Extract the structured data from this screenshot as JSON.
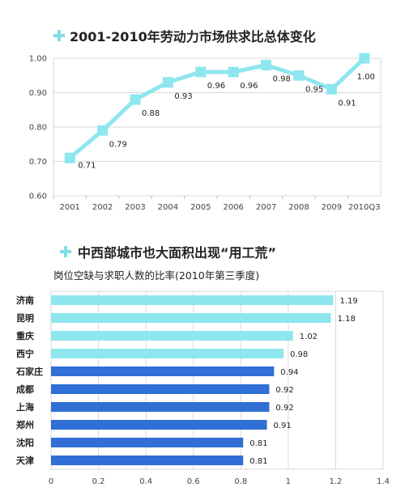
{
  "chart_data": [
    {
      "type": "line",
      "title": "2001-2010年劳动力市场供求比总体变化",
      "categories": [
        "2001",
        "2002",
        "2003",
        "2004",
        "2005",
        "2006",
        "2007",
        "2008",
        "2009",
        "2010Q3"
      ],
      "values": [
        0.71,
        0.79,
        0.88,
        0.93,
        0.96,
        0.96,
        0.98,
        0.95,
        0.91,
        1.0
      ],
      "data_labels": [
        "0.71",
        "0.79",
        "0.88",
        "0.93",
        "0.96",
        "0.96",
        "0.98",
        "0.95",
        "0.91",
        "1.00"
      ],
      "yticks": [
        "0.60",
        "0.70",
        "0.80",
        "0.90",
        "1.00"
      ],
      "ylim": [
        0.6,
        1.0
      ],
      "grid": true,
      "color": "#8ee6ee"
    },
    {
      "type": "bar",
      "orientation": "horizontal",
      "title": "中西部城市也大面积出现“用工荒”",
      "subtitle": "岗位空缺与求职人数的比率(2010年第三季度)",
      "categories": [
        "济南",
        "昆明",
        "重庆",
        "西宁",
        "石家庄",
        "成都",
        "上海",
        "郑州",
        "沈阳",
        "天津"
      ],
      "values": [
        1.19,
        1.18,
        1.02,
        0.98,
        0.94,
        0.92,
        0.92,
        0.91,
        0.81,
        0.81
      ],
      "data_labels": [
        "1.19",
        "1.18",
        "1.02",
        "0.98",
        "0.94",
        "0.92",
        "0.92",
        "0.91",
        "0.81",
        "0.81"
      ],
      "colors": [
        "#8ee6ee",
        "#8ee6ee",
        "#8ee6ee",
        "#8ee6ee",
        "#2f6fd6",
        "#2f6fd6",
        "#2f6fd6",
        "#2f6fd6",
        "#2f6fd6",
        "#2f6fd6"
      ],
      "xticks": [
        "0",
        "0.2",
        "0.4",
        "0.6",
        "0.8",
        "1",
        "1.2",
        "1.4"
      ],
      "xlim": [
        0,
        1.4
      ],
      "grid": true
    }
  ]
}
